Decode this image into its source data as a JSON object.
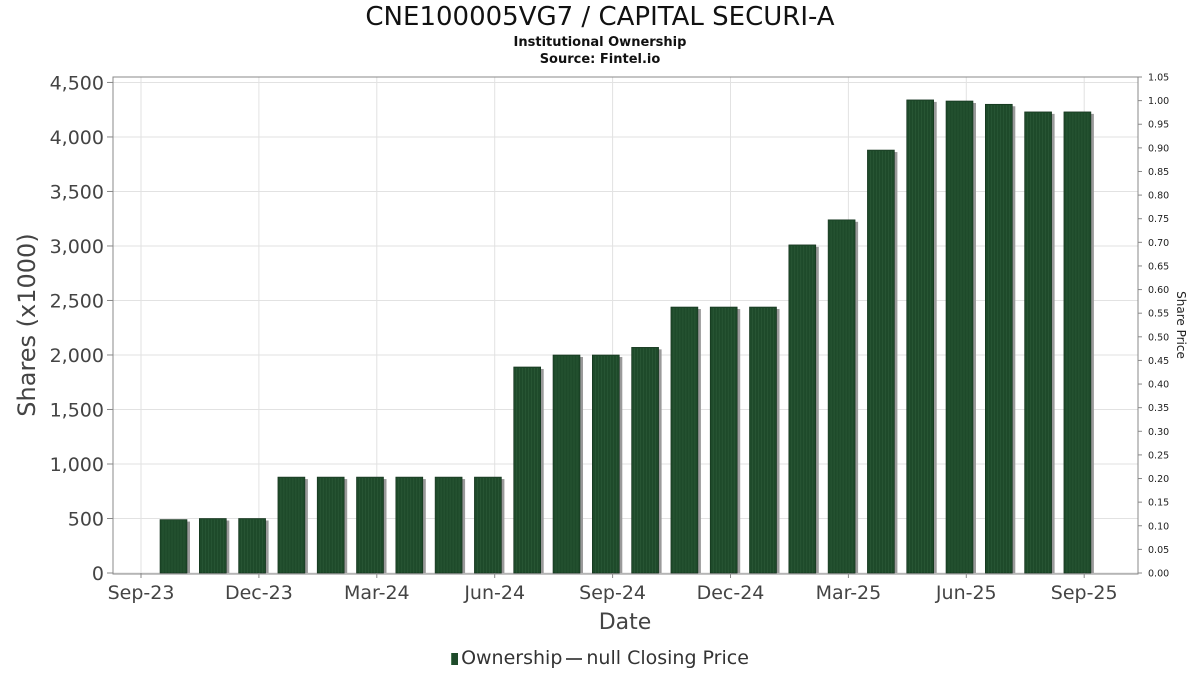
{
  "chart_data": {
    "type": "bar",
    "title": "CNE100005VG7 / CAPITAL SECURI-A",
    "subtitle": "Institutional Ownership",
    "source": "Source: Fintel.io",
    "xlabel": "Date",
    "ylabel": "Shares (x1000)",
    "y2label": "Share Price",
    "ylim": [
      0,
      4550
    ],
    "y2lim": [
      0,
      1.05
    ],
    "yticks": [
      "0",
      "500",
      "1,000",
      "1,500",
      "2,000",
      "2,500",
      "3,000",
      "3,500",
      "4,000",
      "4,500"
    ],
    "y2ticks": [
      "0.00",
      "0.05",
      "0.10",
      "0.15",
      "0.20",
      "0.25",
      "0.30",
      "0.35",
      "0.40",
      "0.45",
      "0.50",
      "0.55",
      "0.60",
      "0.65",
      "0.70",
      "0.75",
      "0.80",
      "0.85",
      "0.90",
      "0.95",
      "1.00",
      "1.05"
    ],
    "xticks": [
      "Sep-23",
      "Dec-23",
      "Mar-24",
      "Jun-24",
      "Sep-24",
      "Dec-24",
      "Mar-25",
      "Jun-25",
      "Sep-25"
    ],
    "grid": true,
    "legend_position": "bottom",
    "series": [
      {
        "name": "Ownership",
        "color": "#1e4a2a",
        "values": [
          490,
          500,
          500,
          880,
          880,
          880,
          880,
          880,
          880,
          1890,
          2000,
          2000,
          2070,
          2440,
          2440,
          2440,
          3010,
          3240,
          3880,
          4340,
          4330,
          4300,
          4230,
          4230
        ]
      }
    ],
    "legend": {
      "ownership_label": "Ownership",
      "price_label": "null Closing Price"
    }
  }
}
